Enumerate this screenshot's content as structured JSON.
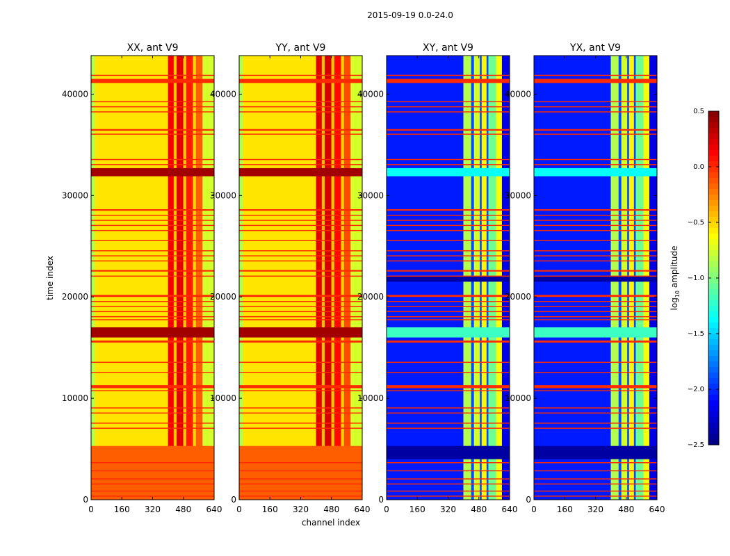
{
  "chart_data": {
    "type": "heatmap",
    "title": "2015-09-19 0.0-24.0",
    "xlabel": "channel index",
    "ylabel": "time index",
    "xlim": [
      0,
      640
    ],
    "ylim": [
      0,
      43800
    ],
    "xticks": [
      "0",
      "160",
      "320",
      "480",
      "640"
    ],
    "xtick_values": [
      0,
      160,
      320,
      480,
      640
    ],
    "yticks": [
      "0",
      "10000",
      "20000",
      "30000",
      "40000"
    ],
    "ytick_values": [
      0,
      10000,
      20000,
      30000,
      40000
    ],
    "colormap": "jet",
    "colorbar": {
      "label_main": "log",
      "label_sub": "10",
      "label_rest": " amplitude",
      "range": [
        -2.5,
        0.5
      ],
      "ticks": [
        "0.5",
        "0.0",
        "−0.5",
        "−1.0",
        "−1.5",
        "−2.0",
        "−2.5"
      ],
      "tick_values": [
        0.5,
        0.0,
        -0.5,
        -1.0,
        -1.5,
        -2.0,
        -2.5
      ]
    },
    "shared_flag_rows": [
      [
        41100,
        41500,
        0.0
      ],
      [
        41800,
        41900,
        0.0
      ],
      [
        39200,
        39300,
        0.0
      ],
      [
        38700,
        38800,
        0.0
      ],
      [
        38200,
        38300,
        0.0
      ],
      [
        36400,
        36550,
        0.0
      ],
      [
        36000,
        36100,
        0.0
      ],
      [
        33500,
        33600,
        0.0
      ],
      [
        33000,
        33100,
        0.0
      ],
      [
        28500,
        28650,
        0.0
      ],
      [
        28000,
        28100,
        0.0
      ],
      [
        27500,
        27600,
        0.0
      ],
      [
        27000,
        27100,
        0.0
      ],
      [
        26500,
        26600,
        0.0
      ],
      [
        25500,
        25600,
        0.0
      ],
      [
        24500,
        24600,
        0.0
      ],
      [
        24000,
        24100,
        0.0
      ],
      [
        23500,
        23600,
        0.0
      ],
      [
        22500,
        22650,
        0.0
      ],
      [
        22000,
        22100,
        0.0
      ],
      [
        20000,
        20200,
        0.0
      ],
      [
        19500,
        19600,
        0.0
      ],
      [
        19000,
        19100,
        0.0
      ],
      [
        18500,
        18600,
        0.0
      ],
      [
        18000,
        18100,
        0.0
      ],
      [
        17700,
        17800,
        0.0
      ],
      [
        15500,
        15700,
        0.0
      ],
      [
        13500,
        13600,
        0.0
      ],
      [
        12500,
        12600,
        0.0
      ],
      [
        11000,
        11300,
        0.0
      ],
      [
        10700,
        10800,
        0.0
      ],
      [
        9000,
        9100,
        0.0
      ],
      [
        8500,
        8600,
        0.0
      ],
      [
        7500,
        7600,
        0.0
      ],
      [
        7000,
        7100,
        0.0
      ],
      [
        3600,
        3700,
        0.0
      ],
      [
        2800,
        2900,
        0.0
      ],
      [
        2000,
        2100,
        0.0
      ],
      [
        1500,
        1600,
        0.0
      ],
      [
        800,
        900,
        0.0
      ],
      [
        300,
        400,
        0.0
      ]
    ],
    "panels": [
      {
        "title": "XX, ant V9",
        "columns": [
          [
            0,
            20,
            -0.85
          ],
          [
            20,
            400,
            -0.55
          ],
          [
            400,
            430,
            0.15
          ],
          [
            430,
            445,
            -0.45
          ],
          [
            445,
            480,
            0.2
          ],
          [
            480,
            495,
            -0.45
          ],
          [
            495,
            530,
            0.05
          ],
          [
            530,
            545,
            -0.5
          ],
          [
            545,
            580,
            -0.15
          ],
          [
            580,
            640,
            -0.75
          ]
        ],
        "extra_rows": [
          [
            0,
            5300,
            -0.15
          ],
          [
            31900,
            32700,
            0.4
          ],
          [
            16000,
            17000,
            0.4
          ]
        ]
      },
      {
        "title": "YY, ant V9",
        "columns": [
          [
            0,
            20,
            -0.85
          ],
          [
            20,
            400,
            -0.55
          ],
          [
            400,
            430,
            0.2
          ],
          [
            430,
            445,
            -0.45
          ],
          [
            445,
            480,
            0.25
          ],
          [
            480,
            495,
            -0.45
          ],
          [
            495,
            530,
            0.1
          ],
          [
            530,
            545,
            -0.5
          ],
          [
            545,
            580,
            -0.1
          ],
          [
            580,
            640,
            -0.75
          ]
        ],
        "extra_rows": [
          [
            0,
            5300,
            -0.15
          ],
          [
            31900,
            32700,
            0.4
          ],
          [
            16000,
            17000,
            0.4
          ]
        ]
      },
      {
        "title": "XY, ant V9",
        "columns": [
          [
            0,
            400,
            -2.05
          ],
          [
            400,
            440,
            -0.85
          ],
          [
            440,
            455,
            -1.9
          ],
          [
            455,
            485,
            -0.75
          ],
          [
            485,
            495,
            -1.9
          ],
          [
            495,
            520,
            -0.6
          ],
          [
            520,
            530,
            -1.9
          ],
          [
            530,
            570,
            -1.05
          ],
          [
            570,
            600,
            -0.65
          ],
          [
            600,
            640,
            -2.2
          ]
        ],
        "extra_rows": [
          [
            31900,
            32700,
            -1.35
          ],
          [
            16000,
            17000,
            -1.2
          ],
          [
            21500,
            22000,
            -2.4
          ],
          [
            4000,
            5300,
            -2.4
          ]
        ]
      },
      {
        "title": "YX, ant V9",
        "columns": [
          [
            0,
            400,
            -2.05
          ],
          [
            400,
            440,
            -0.85
          ],
          [
            440,
            455,
            -1.9
          ],
          [
            455,
            485,
            -0.75
          ],
          [
            485,
            495,
            -1.9
          ],
          [
            495,
            520,
            -0.6
          ],
          [
            520,
            530,
            -1.9
          ],
          [
            530,
            570,
            -1.05
          ],
          [
            570,
            600,
            -0.65
          ],
          [
            600,
            640,
            -2.2
          ]
        ],
        "extra_rows": [
          [
            31900,
            32700,
            -1.35
          ],
          [
            16000,
            17000,
            -1.2
          ],
          [
            21500,
            22000,
            -2.4
          ],
          [
            4000,
            5300,
            -2.4
          ]
        ]
      }
    ]
  }
}
